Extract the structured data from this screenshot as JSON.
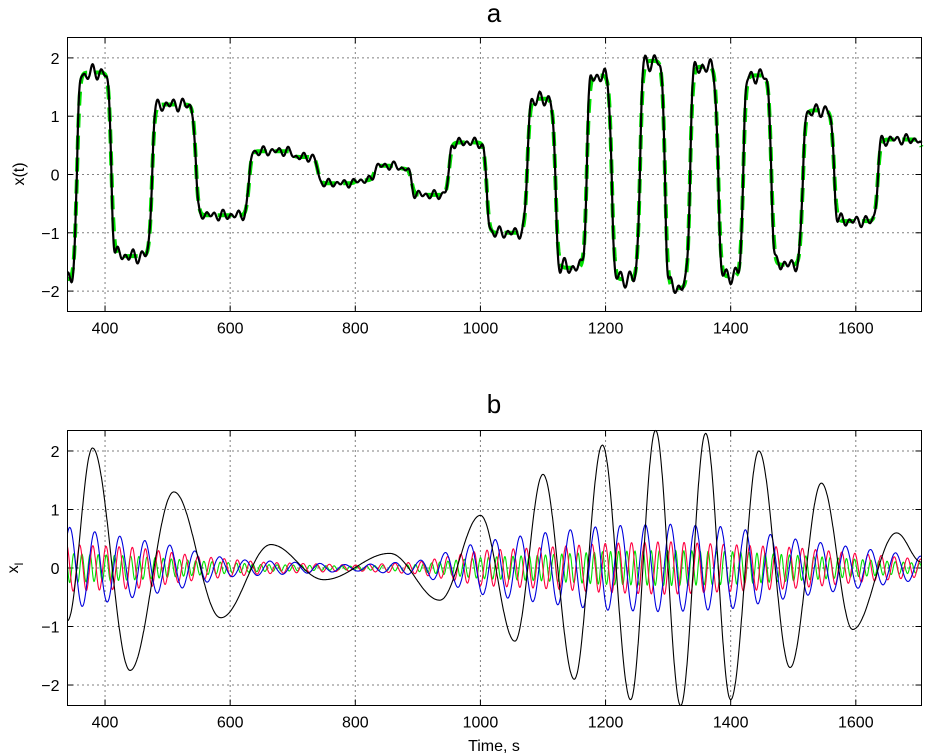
{
  "chart_data": [
    {
      "type": "line",
      "title": "a",
      "xlabel": "",
      "ylabel": "x(t)",
      "xlim": [
        340,
        1705
      ],
      "ylim": [
        -2.35,
        2.35
      ],
      "xticks": [
        400,
        600,
        800,
        1000,
        1200,
        1400,
        1600
      ],
      "yticks": [
        -2,
        -1,
        0,
        1,
        2
      ],
      "grid": true,
      "series": [
        {
          "style": "dashed",
          "color": "#00e000",
          "steps": [
            [
              345,
              -1.8
            ],
            [
              355,
              1.75
            ],
            [
              410,
              -1.4
            ],
            [
              475,
              1.2
            ],
            [
              545,
              -0.7
            ],
            [
              630,
              0.4
            ],
            [
              700,
              0.3
            ],
            [
              740,
              -0.15
            ],
            [
              800,
              -0.1
            ],
            [
              830,
              0.15
            ],
            [
              870,
              0.1
            ],
            [
              890,
              -0.35
            ],
            [
              950,
              0.55
            ],
            [
              1010,
              -1.0
            ],
            [
              1075,
              1.3
            ],
            [
              1120,
              -1.6
            ],
            [
              1170,
              1.7
            ],
            [
              1210,
              -1.8
            ],
            [
              1255,
              1.95
            ],
            [
              1295,
              -1.95
            ],
            [
              1335,
              1.85
            ],
            [
              1380,
              -1.75
            ],
            [
              1420,
              1.7
            ],
            [
              1465,
              -1.55
            ],
            [
              1515,
              1.1
            ],
            [
              1565,
              -0.8
            ],
            [
              1635,
              0.6
            ],
            [
              1705,
              0.35
            ]
          ]
        },
        {
          "style": "solid",
          "color": "#000000",
          "description_source": "ripple-on-steps"
        }
      ]
    },
    {
      "type": "line",
      "title": "b",
      "xlabel": "Time, s",
      "ylabel": "x",
      "ylabel_sub": "l",
      "xlim": [
        340,
        1705
      ],
      "ylim": [
        -2.35,
        2.35
      ],
      "xticks": [
        400,
        600,
        800,
        1000,
        1200,
        1400,
        1600
      ],
      "yticks": [
        -2,
        -1,
        0,
        1,
        2
      ],
      "grid": true,
      "series": [
        {
          "color": "#000000",
          "period": 85,
          "peaks": [
            [
              340,
              -0.9
            ],
            [
              380,
              2.05
            ],
            [
              440,
              -1.75
            ],
            [
              510,
              1.3
            ],
            [
              585,
              -0.85
            ],
            [
              665,
              0.4
            ],
            [
              750,
              -0.2
            ],
            [
              855,
              0.25
            ],
            [
              935,
              -0.55
            ],
            [
              1000,
              0.9
            ],
            [
              1055,
              -1.25
            ],
            [
              1100,
              1.6
            ],
            [
              1150,
              -1.9
            ],
            [
              1195,
              2.1
            ],
            [
              1240,
              -2.25
            ],
            [
              1280,
              2.35
            ],
            [
              1320,
              -2.35
            ],
            [
              1360,
              2.3
            ],
            [
              1400,
              -2.25
            ],
            [
              1445,
              2.0
            ],
            [
              1495,
              -1.7
            ],
            [
              1545,
              1.45
            ],
            [
              1595,
              -1.05
            ],
            [
              1665,
              0.6
            ],
            [
              1705,
              0.1
            ]
          ]
        },
        {
          "color": "#0000dd",
          "period": 40,
          "envelope": [
            [
              340,
              0.7
            ],
            [
              420,
              0.55
            ],
            [
              500,
              0.4
            ],
            [
              600,
              0.15
            ],
            [
              700,
              0.1
            ],
            [
              800,
              0.05
            ],
            [
              900,
              0.12
            ],
            [
              1000,
              0.45
            ],
            [
              1100,
              0.6
            ],
            [
              1200,
              0.72
            ],
            [
              1300,
              0.75
            ],
            [
              1400,
              0.7
            ],
            [
              1500,
              0.5
            ],
            [
              1600,
              0.35
            ],
            [
              1705,
              0.2
            ]
          ]
        },
        {
          "color": "#ff0040",
          "period": 21,
          "envelope": [
            [
              340,
              0.4
            ],
            [
              450,
              0.35
            ],
            [
              550,
              0.2
            ],
            [
              650,
              0.1
            ],
            [
              800,
              0.05
            ],
            [
              900,
              0.1
            ],
            [
              1000,
              0.3
            ],
            [
              1100,
              0.35
            ],
            [
              1200,
              0.42
            ],
            [
              1300,
              0.45
            ],
            [
              1400,
              0.4
            ],
            [
              1500,
              0.35
            ],
            [
              1600,
              0.25
            ],
            [
              1705,
              0.15
            ]
          ]
        },
        {
          "color": "#00e000",
          "period": 13,
          "envelope": [
            [
              340,
              0.25
            ],
            [
              450,
              0.2
            ],
            [
              550,
              0.12
            ],
            [
              650,
              0.06
            ],
            [
              800,
              0.03
            ],
            [
              900,
              0.06
            ],
            [
              1000,
              0.18
            ],
            [
              1100,
              0.22
            ],
            [
              1200,
              0.28
            ],
            [
              1300,
              0.3
            ],
            [
              1400,
              0.28
            ],
            [
              1500,
              0.22
            ],
            [
              1600,
              0.15
            ],
            [
              1705,
              0.08
            ]
          ]
        }
      ]
    }
  ]
}
